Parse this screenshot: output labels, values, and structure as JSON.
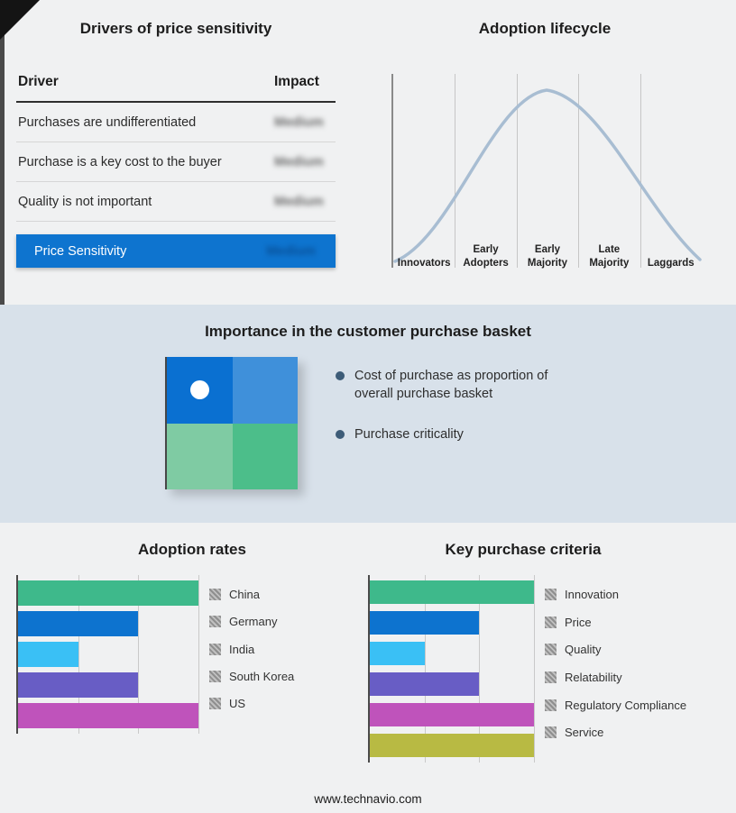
{
  "footer": {
    "url": "www.technavio.com"
  },
  "drivers_table": {
    "title": "Drivers of price sensitivity",
    "col_driver": "Driver",
    "col_impact": "Impact",
    "rows": [
      {
        "driver": "Purchases are undifferentiated",
        "impact": "Medium"
      },
      {
        "driver": "Purchase is a key cost to the buyer",
        "impact": "Medium"
      },
      {
        "driver": "Quality is not important",
        "impact": "Medium"
      }
    ],
    "highlight": {
      "driver": "Price Sensitivity",
      "impact": "Medium"
    },
    "highlight_color": "#0e74cf"
  },
  "lifecycle": {
    "title": "Adoption lifecycle",
    "stages": [
      "Innovators",
      "Early Adopters",
      "Early Majority",
      "Late Majority",
      "Laggards"
    ],
    "curve_color": "#a8bdd2"
  },
  "basket": {
    "title": "Importance in the customer purchase basket",
    "bullets": [
      "Cost of purchase as proportion of overall purchase basket",
      "Purchase criticality"
    ],
    "matrix_colors": {
      "top_left": "#0a70d1",
      "top_right": "#3f90da",
      "bottom_left": "#7fcba3",
      "bottom_right": "#4cbe8a"
    }
  },
  "chart_data": [
    {
      "type": "bar",
      "orientation": "horizontal",
      "title": "Adoption rates",
      "categories": [
        "China",
        "Germany",
        "India",
        "South Korea",
        "US"
      ],
      "values": [
        100,
        66.7,
        33.3,
        66.7,
        100
      ],
      "colors": [
        "#3eb98b",
        "#0d73cf",
        "#3ac0f5",
        "#685dc5",
        "#bf53bb"
      ],
      "xlim": [
        0,
        100
      ],
      "gridlines_pct": [
        33.33,
        66.67,
        100
      ],
      "legend_position": "right"
    },
    {
      "type": "bar",
      "orientation": "horizontal",
      "title": "Key purchase criteria",
      "categories": [
        "Innovation",
        "Price",
        "Quality",
        "Relatability",
        "Regulatory Compliance",
        "Service"
      ],
      "values": [
        100,
        66.7,
        33.3,
        66.7,
        100,
        100
      ],
      "colors": [
        "#3eb98b",
        "#0d73cf",
        "#3ac0f5",
        "#685dc5",
        "#bf53bb",
        "#b8ba43"
      ],
      "xlim": [
        0,
        100
      ],
      "gridlines_pct": [
        33.33,
        66.67,
        100
      ],
      "legend_position": "right"
    }
  ]
}
